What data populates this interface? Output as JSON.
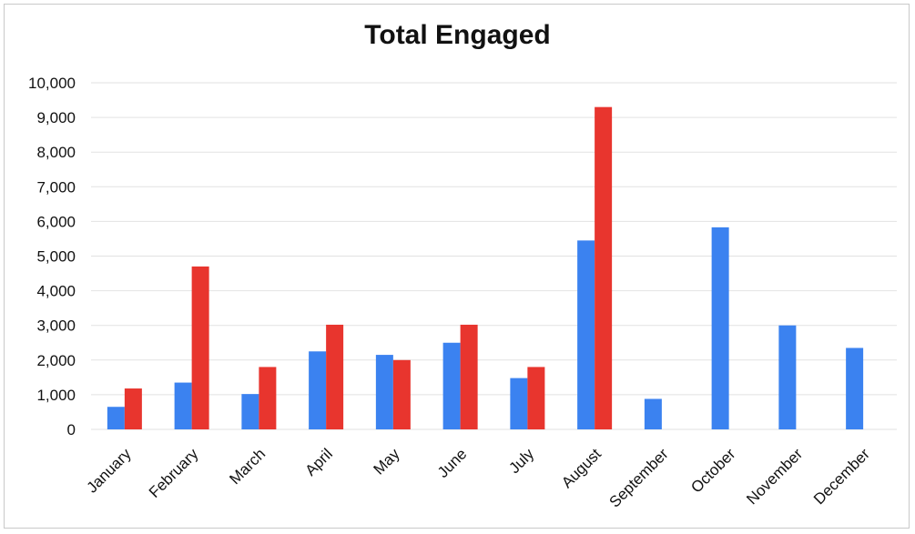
{
  "chart_data": {
    "type": "bar",
    "title": "Total Engaged",
    "xlabel": "",
    "ylabel": "",
    "ylim": [
      0,
      10000
    ],
    "yticks": [
      "0",
      "1,000",
      "2,000",
      "3,000",
      "4,000",
      "5,000",
      "6,000",
      "7,000",
      "8,000",
      "9,000",
      "10,000"
    ],
    "grid": true,
    "legend": "none",
    "categories": [
      "January",
      "February",
      "March",
      "April",
      "May",
      "June",
      "July",
      "August",
      "September",
      "October",
      "November",
      "December"
    ],
    "series": [
      {
        "color": "#3b82f0",
        "values": [
          650,
          1350,
          1020,
          2250,
          2150,
          2500,
          1480,
          5450,
          880,
          5830,
          3000,
          2350
        ]
      },
      {
        "color": "#e8352e",
        "values": [
          1180,
          4700,
          1800,
          3020,
          2000,
          3020,
          1800,
          9300,
          null,
          null,
          null,
          null
        ]
      }
    ]
  }
}
